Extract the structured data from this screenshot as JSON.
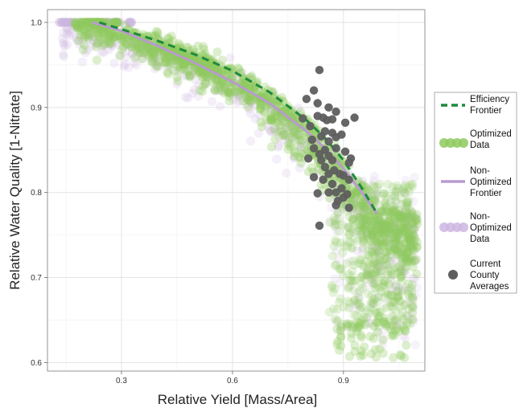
{
  "chart_data": {
    "type": "scatter",
    "xlabel": "Relative Yield [Mass/Area]",
    "ylabel": "Relative Water Quality [1-Nitrate]",
    "xlim": [
      0.1,
      1.12
    ],
    "ylim": [
      0.59,
      1.015
    ],
    "x_ticks": [
      0.3,
      0.6,
      0.9
    ],
    "y_ticks": [
      0.6,
      0.7,
      0.8,
      0.9,
      1.0
    ],
    "x_tick_labels": [
      "0.3",
      "0.6",
      "0.9"
    ],
    "y_tick_labels": [
      "0.6",
      "0.7",
      "0.8",
      "0.9",
      "1.0"
    ],
    "grid": true,
    "legend_position": "right",
    "colors": {
      "efficiency_frontier": "#1e8a3c",
      "optimized_data": "#8ec95e",
      "non_optimized_frontier": "#b99ad0",
      "non_optimized_data": "#cdb6e0",
      "county_averages": "#5e5e5e"
    },
    "legend": [
      {
        "key": "efficiency",
        "lines": [
          "Efficiency",
          "Frontier"
        ]
      },
      {
        "key": "optimized",
        "lines": [
          "Optimized",
          "Data"
        ]
      },
      {
        "key": "nonopt_frontier",
        "lines": [
          "Non-",
          "Optimized",
          "Frontier"
        ]
      },
      {
        "key": "nonopt_data",
        "lines": [
          "Non-",
          "Optimized",
          "Data"
        ]
      },
      {
        "key": "county",
        "lines": [
          "Current",
          "County",
          "Averages"
        ]
      }
    ],
    "series": [
      {
        "name": "Efficiency Frontier",
        "kind": "line",
        "style": "dashed",
        "points": [
          [
            0.24,
            1.0
          ],
          [
            0.3,
            0.992
          ],
          [
            0.4,
            0.978
          ],
          [
            0.5,
            0.962
          ],
          [
            0.6,
            0.943
          ],
          [
            0.7,
            0.918
          ],
          [
            0.8,
            0.885
          ],
          [
            0.85,
            0.864
          ],
          [
            0.9,
            0.838
          ],
          [
            0.95,
            0.805
          ],
          [
            0.99,
            0.776
          ]
        ]
      },
      {
        "name": "Non-Optimized Frontier",
        "kind": "line",
        "style": "solid",
        "points": [
          [
            0.22,
            1.0
          ],
          [
            0.3,
            0.99
          ],
          [
            0.4,
            0.972
          ],
          [
            0.5,
            0.952
          ],
          [
            0.6,
            0.93
          ],
          [
            0.7,
            0.905
          ],
          [
            0.8,
            0.872
          ],
          [
            0.85,
            0.852
          ],
          [
            0.9,
            0.828
          ],
          [
            0.95,
            0.8
          ],
          [
            0.99,
            0.775
          ]
        ]
      },
      {
        "name": "Current County Averages",
        "kind": "scatter",
        "points": [
          [
            0.835,
            0.944
          ],
          [
            0.82,
            0.92
          ],
          [
            0.8,
            0.91
          ],
          [
            0.83,
            0.905
          ],
          [
            0.86,
            0.9
          ],
          [
            0.88,
            0.895
          ],
          [
            0.83,
            0.89
          ],
          [
            0.845,
            0.888
          ],
          [
            0.855,
            0.885
          ],
          [
            0.87,
            0.886
          ],
          [
            0.93,
            0.888
          ],
          [
            0.905,
            0.882
          ],
          [
            0.79,
            0.887
          ],
          [
            0.81,
            0.878
          ],
          [
            0.85,
            0.872
          ],
          [
            0.87,
            0.87
          ],
          [
            0.84,
            0.866
          ],
          [
            0.88,
            0.865
          ],
          [
            0.895,
            0.868
          ],
          [
            0.815,
            0.862
          ],
          [
            0.86,
            0.86
          ],
          [
            0.82,
            0.852
          ],
          [
            0.85,
            0.85
          ],
          [
            0.88,
            0.852
          ],
          [
            0.905,
            0.848
          ],
          [
            0.835,
            0.845
          ],
          [
            0.86,
            0.843
          ],
          [
            0.84,
            0.838
          ],
          [
            0.87,
            0.838
          ],
          [
            0.92,
            0.84
          ],
          [
            0.915,
            0.835
          ],
          [
            0.805,
            0.84
          ],
          [
            0.85,
            0.83
          ],
          [
            0.875,
            0.826
          ],
          [
            0.86,
            0.822
          ],
          [
            0.89,
            0.822
          ],
          [
            0.9,
            0.82
          ],
          [
            0.82,
            0.818
          ],
          [
            0.845,
            0.815
          ],
          [
            0.915,
            0.815
          ],
          [
            0.87,
            0.81
          ],
          [
            0.895,
            0.805
          ],
          [
            0.86,
            0.8
          ],
          [
            0.88,
            0.8
          ],
          [
            0.91,
            0.798
          ],
          [
            0.83,
            0.799
          ],
          [
            0.885,
            0.79
          ],
          [
            0.9,
            0.794
          ],
          [
            0.88,
            0.785
          ],
          [
            0.915,
            0.782
          ],
          [
            0.835,
            0.761
          ]
        ]
      },
      {
        "name": "Optimized Data",
        "kind": "scatter-cloud",
        "note_shape": "dense band from (0.17,1.0) down to (1.0,0.77); lower tail to y≈0.61 near x≈0.85-1.07"
      },
      {
        "name": "Non-Optimized Data",
        "kind": "scatter-cloud",
        "note_shape": "diffuse band below and around optimized cloud; cluster at y=1.0 for x 0.13-0.33"
      }
    ]
  }
}
